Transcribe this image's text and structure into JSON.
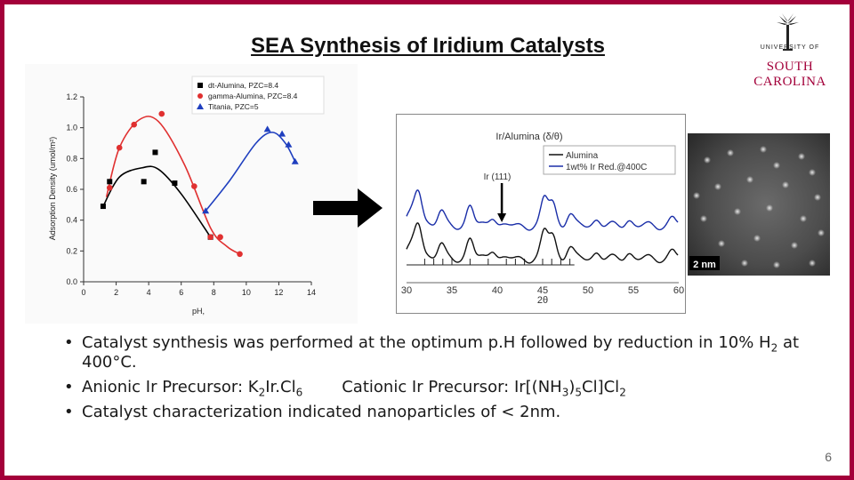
{
  "slide": {
    "title": "SEA Synthesis of Iridium Catalysts",
    "page_number": "6"
  },
  "logo": {
    "line1": "UNIVERSITY OF",
    "line2": "SOUTH CAROLINA"
  },
  "bullets": [
    {
      "text1": "Catalyst synthesis was performed at the optimum p.H followed by reduction in 10% H",
      "sub1": "2",
      "text2": " at 400°C."
    },
    {
      "text1": "Anionic Ir Precursor: K",
      "sub1": "2",
      "text2": "Ir.Cl",
      "sub2": "6",
      "text3": "Cationic Ir Precursor: Ir[(NH",
      "sub3": "3",
      "text4": ")",
      "sub4": "5",
      "text5": "Cl]Cl",
      "sub5": "2"
    },
    {
      "text1": "Catalyst characterization indicated nanoparticles of < 2nm."
    }
  ],
  "tem": {
    "scale_label": "2 nm"
  },
  "chart_data": [
    {
      "type": "scatter",
      "xlabel": "pH,",
      "ylabel": "Adsorption Density (umol/m²)",
      "xlim": [
        0,
        14
      ],
      "ylim": [
        0,
        1.2
      ],
      "xticks": [
        "0",
        "2",
        "4",
        "6",
        "8",
        "10",
        "12",
        "14"
      ],
      "yticks": [
        "0.0",
        "0.2",
        "0.4",
        "0.6",
        "0.8",
        "1.0",
        "1.2"
      ],
      "legend_position": "top-right",
      "series": [
        {
          "name": "dt-Alumina, PZC=8.4",
          "color": "#000000",
          "marker": "square",
          "points": [
            [
              1.2,
              0.49
            ],
            [
              1.6,
              0.65
            ],
            [
              3.7,
              0.65
            ],
            [
              4.4,
              0.84
            ],
            [
              5.6,
              0.64
            ],
            [
              7.8,
              0.29
            ]
          ]
        },
        {
          "name": "gamma-Alumina, PZC=8.4",
          "color": "#e03030",
          "marker": "circle",
          "points": [
            [
              1.6,
              0.61
            ],
            [
              2.2,
              0.87
            ],
            [
              3.1,
              1.02
            ],
            [
              4.8,
              1.09
            ],
            [
              6.8,
              0.62
            ],
            [
              7.8,
              0.29
            ],
            [
              8.4,
              0.29
            ],
            [
              9.6,
              0.18
            ]
          ]
        },
        {
          "name": "Titania, PZC=5",
          "color": "#1f3fbf",
          "marker": "triangle",
          "points": [
            [
              7.5,
              0.46
            ],
            [
              11.3,
              0.99
            ],
            [
              12.2,
              0.96
            ],
            [
              12.6,
              0.89
            ],
            [
              13.0,
              0.78
            ]
          ]
        }
      ]
    },
    {
      "type": "line",
      "title": "Ir/Alumina (δ/θ)",
      "xlabel": "2θ",
      "xlim": [
        30,
        60
      ],
      "xticks": [
        "30",
        "35",
        "40",
        "45",
        "50",
        "55",
        "60"
      ],
      "annotation": "Ir (111)",
      "annotation_x": 40.5,
      "legend_position": "top-right",
      "series": [
        {
          "name": "Alumina",
          "color": "#111111"
        },
        {
          "name": "1wt% Ir Red.@400C",
          "color": "#1a2ea8"
        }
      ]
    }
  ]
}
